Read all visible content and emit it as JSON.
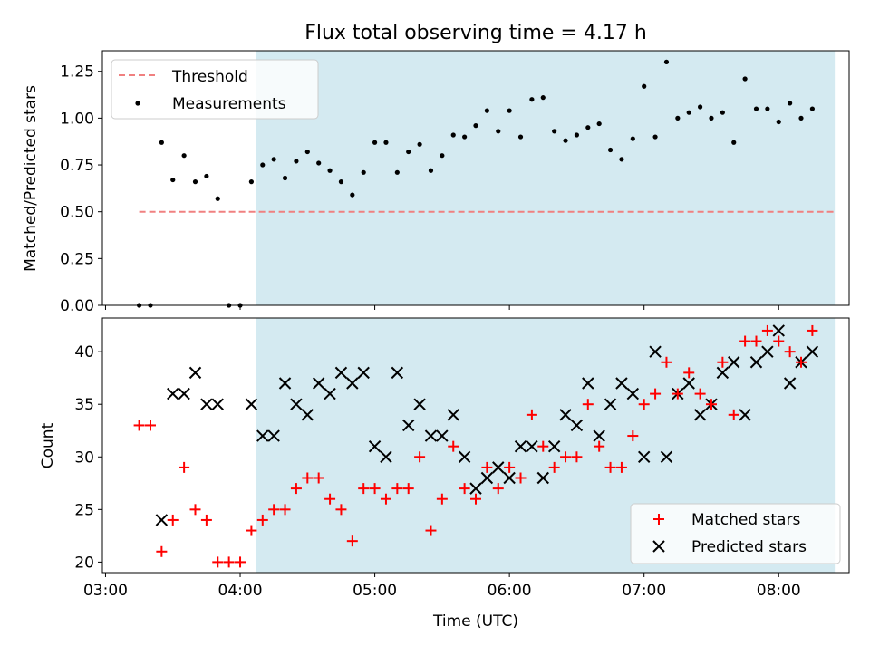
{
  "chart_data": [
    {
      "type": "scatter",
      "title": "Flux total observing time = 4.17 h",
      "xlabel": "",
      "ylabel": "Matched/Predicted stars",
      "xlim": [
        "03:00",
        "08:30"
      ],
      "ylim": [
        0,
        1.36
      ],
      "yticks": [
        "0.00",
        "0.25",
        "0.50",
        "0.75",
        "1.00",
        "1.25"
      ],
      "shaded_region": {
        "start": "04:07",
        "end": "08:25",
        "color": "#d4eaf1"
      },
      "threshold": {
        "name": "Threshold",
        "value": 0.5,
        "x_start": "03:15",
        "x_end": "08:25",
        "color": "#f08080"
      },
      "legend_position": "upper-left",
      "series": [
        {
          "name": "Measurements",
          "color": "#000000",
          "points": [
            {
              "x": "03:15",
              "y": 0.0
            },
            {
              "x": "03:20",
              "y": 0.0
            },
            {
              "x": "03:25",
              "y": 0.87
            },
            {
              "x": "03:30",
              "y": 0.67
            },
            {
              "x": "03:35",
              "y": 0.8
            },
            {
              "x": "03:40",
              "y": 0.66
            },
            {
              "x": "03:45",
              "y": 0.69
            },
            {
              "x": "03:50",
              "y": 0.57
            },
            {
              "x": "03:55",
              "y": 0.0
            },
            {
              "x": "04:00",
              "y": 0.0
            },
            {
              "x": "04:05",
              "y": 0.66
            },
            {
              "x": "04:10",
              "y": 0.75
            },
            {
              "x": "04:15",
              "y": 0.78
            },
            {
              "x": "04:20",
              "y": 0.68
            },
            {
              "x": "04:25",
              "y": 0.77
            },
            {
              "x": "04:30",
              "y": 0.82
            },
            {
              "x": "04:35",
              "y": 0.76
            },
            {
              "x": "04:40",
              "y": 0.72
            },
            {
              "x": "04:45",
              "y": 0.66
            },
            {
              "x": "04:50",
              "y": 0.59
            },
            {
              "x": "04:55",
              "y": 0.71
            },
            {
              "x": "05:00",
              "y": 0.87
            },
            {
              "x": "05:05",
              "y": 0.87
            },
            {
              "x": "05:10",
              "y": 0.71
            },
            {
              "x": "05:15",
              "y": 0.82
            },
            {
              "x": "05:20",
              "y": 0.86
            },
            {
              "x": "05:25",
              "y": 0.72
            },
            {
              "x": "05:30",
              "y": 0.8
            },
            {
              "x": "05:35",
              "y": 0.91
            },
            {
              "x": "05:40",
              "y": 0.9
            },
            {
              "x": "05:45",
              "y": 0.96
            },
            {
              "x": "05:50",
              "y": 1.04
            },
            {
              "x": "05:55",
              "y": 0.93
            },
            {
              "x": "06:00",
              "y": 1.04
            },
            {
              "x": "06:05",
              "y": 0.9
            },
            {
              "x": "06:10",
              "y": 1.1
            },
            {
              "x": "06:15",
              "y": 1.11
            },
            {
              "x": "06:20",
              "y": 0.93
            },
            {
              "x": "06:25",
              "y": 0.88
            },
            {
              "x": "06:30",
              "y": 0.91
            },
            {
              "x": "06:35",
              "y": 0.95
            },
            {
              "x": "06:40",
              "y": 0.97
            },
            {
              "x": "06:45",
              "y": 0.83
            },
            {
              "x": "06:50",
              "y": 0.78
            },
            {
              "x": "06:55",
              "y": 0.89
            },
            {
              "x": "07:00",
              "y": 1.17
            },
            {
              "x": "07:05",
              "y": 0.9
            },
            {
              "x": "07:10",
              "y": 1.3
            },
            {
              "x": "07:15",
              "y": 1.0
            },
            {
              "x": "07:20",
              "y": 1.03
            },
            {
              "x": "07:25",
              "y": 1.06
            },
            {
              "x": "07:30",
              "y": 1.0
            },
            {
              "x": "07:35",
              "y": 1.03
            },
            {
              "x": "07:40",
              "y": 0.87
            },
            {
              "x": "07:45",
              "y": 1.21
            },
            {
              "x": "07:50",
              "y": 1.05
            },
            {
              "x": "07:55",
              "y": 1.05
            },
            {
              "x": "08:00",
              "y": 0.98
            },
            {
              "x": "08:05",
              "y": 1.08
            },
            {
              "x": "08:10",
              "y": 1.0
            },
            {
              "x": "08:15",
              "y": 1.05
            }
          ]
        }
      ]
    },
    {
      "type": "scatter",
      "title": "",
      "xlabel": "Time (UTC)",
      "ylabel": "Count",
      "xlim": [
        "03:00",
        "08:30"
      ],
      "ylim": [
        19,
        43.2
      ],
      "xticks": [
        "03:00",
        "04:00",
        "05:00",
        "06:00",
        "07:00",
        "08:00"
      ],
      "yticks": [
        "20",
        "25",
        "30",
        "35",
        "40"
      ],
      "shaded_region": {
        "start": "04:07",
        "end": "08:25",
        "color": "#d4eaf1"
      },
      "legend_position": "lower-right",
      "series": [
        {
          "name": "Matched stars",
          "marker": "plus",
          "color": "#ff0000",
          "points": [
            {
              "x": "03:15",
              "y": 33
            },
            {
              "x": "03:20",
              "y": 33
            },
            {
              "x": "03:25",
              "y": 21
            },
            {
              "x": "03:30",
              "y": 24
            },
            {
              "x": "03:35",
              "y": 29
            },
            {
              "x": "03:40",
              "y": 25
            },
            {
              "x": "03:45",
              "y": 24
            },
            {
              "x": "03:50",
              "y": 20
            },
            {
              "x": "03:55",
              "y": 20
            },
            {
              "x": "04:00",
              "y": 20
            },
            {
              "x": "04:05",
              "y": 23
            },
            {
              "x": "04:10",
              "y": 24
            },
            {
              "x": "04:15",
              "y": 25
            },
            {
              "x": "04:20",
              "y": 25
            },
            {
              "x": "04:25",
              "y": 27
            },
            {
              "x": "04:30",
              "y": 28
            },
            {
              "x": "04:35",
              "y": 28
            },
            {
              "x": "04:40",
              "y": 26
            },
            {
              "x": "04:45",
              "y": 25
            },
            {
              "x": "04:50",
              "y": 22
            },
            {
              "x": "04:55",
              "y": 27
            },
            {
              "x": "05:00",
              "y": 27
            },
            {
              "x": "05:05",
              "y": 26
            },
            {
              "x": "05:10",
              "y": 27
            },
            {
              "x": "05:15",
              "y": 27
            },
            {
              "x": "05:20",
              "y": 30
            },
            {
              "x": "05:25",
              "y": 23
            },
            {
              "x": "05:30",
              "y": 26
            },
            {
              "x": "05:35",
              "y": 31
            },
            {
              "x": "05:40",
              "y": 27
            },
            {
              "x": "05:45",
              "y": 26
            },
            {
              "x": "05:50",
              "y": 29
            },
            {
              "x": "05:55",
              "y": 27
            },
            {
              "x": "06:00",
              "y": 29
            },
            {
              "x": "06:05",
              "y": 28
            },
            {
              "x": "06:10",
              "y": 34
            },
            {
              "x": "06:15",
              "y": 31
            },
            {
              "x": "06:20",
              "y": 29
            },
            {
              "x": "06:25",
              "y": 30
            },
            {
              "x": "06:30",
              "y": 30
            },
            {
              "x": "06:35",
              "y": 35
            },
            {
              "x": "06:40",
              "y": 31
            },
            {
              "x": "06:45",
              "y": 29
            },
            {
              "x": "06:50",
              "y": 29
            },
            {
              "x": "06:55",
              "y": 32
            },
            {
              "x": "07:00",
              "y": 35
            },
            {
              "x": "07:05",
              "y": 36
            },
            {
              "x": "07:10",
              "y": 39
            },
            {
              "x": "07:15",
              "y": 36
            },
            {
              "x": "07:20",
              "y": 38
            },
            {
              "x": "07:25",
              "y": 36
            },
            {
              "x": "07:30",
              "y": 35
            },
            {
              "x": "07:35",
              "y": 39
            },
            {
              "x": "07:40",
              "y": 34
            },
            {
              "x": "07:45",
              "y": 41
            },
            {
              "x": "07:50",
              "y": 41
            },
            {
              "x": "07:55",
              "y": 42
            },
            {
              "x": "08:00",
              "y": 41
            },
            {
              "x": "08:05",
              "y": 40
            },
            {
              "x": "08:10",
              "y": 39
            },
            {
              "x": "08:15",
              "y": 42
            }
          ]
        },
        {
          "name": "Predicted stars",
          "marker": "x",
          "color": "#000000",
          "points": [
            {
              "x": "03:25",
              "y": 24
            },
            {
              "x": "03:30",
              "y": 36
            },
            {
              "x": "03:35",
              "y": 36
            },
            {
              "x": "03:40",
              "y": 38
            },
            {
              "x": "03:45",
              "y": 35
            },
            {
              "x": "03:50",
              "y": 35
            },
            {
              "x": "04:05",
              "y": 35
            },
            {
              "x": "04:10",
              "y": 32
            },
            {
              "x": "04:15",
              "y": 32
            },
            {
              "x": "04:20",
              "y": 37
            },
            {
              "x": "04:25",
              "y": 35
            },
            {
              "x": "04:30",
              "y": 34
            },
            {
              "x": "04:35",
              "y": 37
            },
            {
              "x": "04:40",
              "y": 36
            },
            {
              "x": "04:45",
              "y": 38
            },
            {
              "x": "04:50",
              "y": 37
            },
            {
              "x": "04:55",
              "y": 38
            },
            {
              "x": "05:00",
              "y": 31
            },
            {
              "x": "05:05",
              "y": 30
            },
            {
              "x": "05:10",
              "y": 38
            },
            {
              "x": "05:15",
              "y": 33
            },
            {
              "x": "05:20",
              "y": 35
            },
            {
              "x": "05:25",
              "y": 32
            },
            {
              "x": "05:30",
              "y": 32
            },
            {
              "x": "05:35",
              "y": 34
            },
            {
              "x": "05:40",
              "y": 30
            },
            {
              "x": "05:45",
              "y": 27
            },
            {
              "x": "05:50",
              "y": 28
            },
            {
              "x": "05:55",
              "y": 29
            },
            {
              "x": "06:00",
              "y": 28
            },
            {
              "x": "06:05",
              "y": 31
            },
            {
              "x": "06:10",
              "y": 31
            },
            {
              "x": "06:15",
              "y": 28
            },
            {
              "x": "06:20",
              "y": 31
            },
            {
              "x": "06:25",
              "y": 34
            },
            {
              "x": "06:30",
              "y": 33
            },
            {
              "x": "06:35",
              "y": 37
            },
            {
              "x": "06:40",
              "y": 32
            },
            {
              "x": "06:45",
              "y": 35
            },
            {
              "x": "06:50",
              "y": 37
            },
            {
              "x": "06:55",
              "y": 36
            },
            {
              "x": "07:00",
              "y": 30
            },
            {
              "x": "07:05",
              "y": 40
            },
            {
              "x": "07:10",
              "y": 30
            },
            {
              "x": "07:15",
              "y": 36
            },
            {
              "x": "07:20",
              "y": 37
            },
            {
              "x": "07:25",
              "y": 34
            },
            {
              "x": "07:30",
              "y": 35
            },
            {
              "x": "07:35",
              "y": 38
            },
            {
              "x": "07:40",
              "y": 39
            },
            {
              "x": "07:45",
              "y": 34
            },
            {
              "x": "07:50",
              "y": 39
            },
            {
              "x": "07:55",
              "y": 40
            },
            {
              "x": "08:00",
              "y": 42
            },
            {
              "x": "08:05",
              "y": 37
            },
            {
              "x": "08:10",
              "y": 39
            },
            {
              "x": "08:15",
              "y": 40
            }
          ]
        }
      ]
    }
  ]
}
